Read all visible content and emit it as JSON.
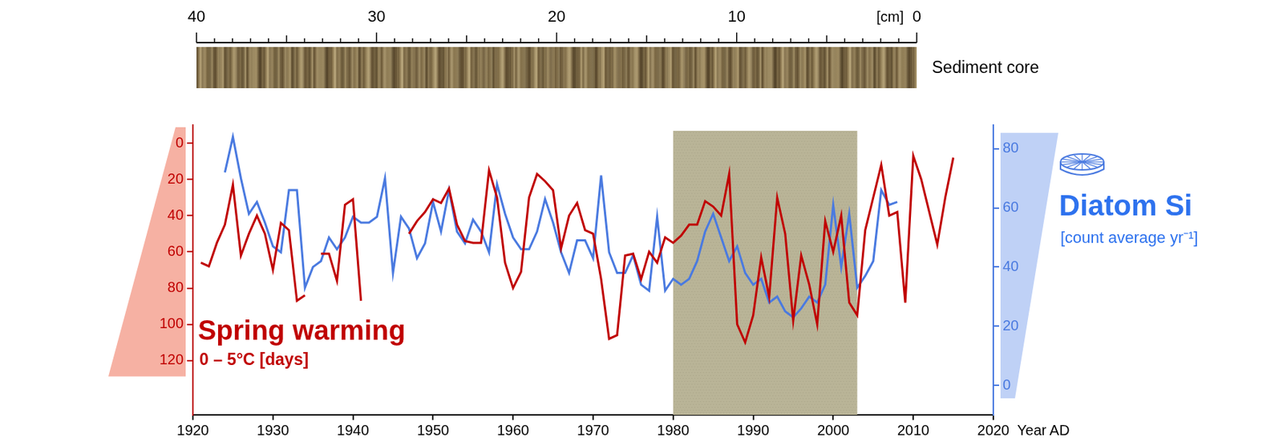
{
  "chart_data": {
    "type": "line",
    "x": [
      1921,
      1922,
      1923,
      1924,
      1925,
      1926,
      1927,
      1928,
      1929,
      1930,
      1931,
      1932,
      1933,
      1934,
      1935,
      1936,
      1937,
      1938,
      1939,
      1940,
      1941,
      1942,
      1943,
      1944,
      1945,
      1946,
      1947,
      1948,
      1949,
      1950,
      1951,
      1952,
      1953,
      1954,
      1955,
      1956,
      1957,
      1958,
      1959,
      1960,
      1961,
      1962,
      1963,
      1964,
      1965,
      1966,
      1967,
      1968,
      1969,
      1970,
      1971,
      1972,
      1973,
      1974,
      1975,
      1976,
      1977,
      1978,
      1979,
      1980,
      1981,
      1982,
      1983,
      1984,
      1985,
      1986,
      1987,
      1988,
      1989,
      1990,
      1991,
      1992,
      1993,
      1994,
      1995,
      1996,
      1997,
      1998,
      1999,
      2000,
      2001,
      2002,
      2003,
      2004,
      2005,
      2006,
      2007,
      2008,
      2009,
      2010,
      2011,
      2012,
      2013,
      2014,
      2015
    ],
    "series": [
      {
        "name": "Spring warming",
        "color": "#c00000",
        "axis": "y",
        "values": [
          66,
          68,
          55,
          45,
          23,
          62,
          50,
          40,
          50,
          70,
          44,
          48,
          87,
          84,
          null,
          61,
          61,
          76,
          34,
          31,
          87,
          null,
          null,
          null,
          null,
          null,
          50,
          43,
          38,
          31,
          33,
          25,
          45,
          54,
          55,
          55,
          15,
          30,
          66,
          80,
          71,
          30,
          17,
          21,
          26,
          58,
          40,
          33,
          48,
          50,
          75,
          108,
          106,
          62,
          61,
          75,
          60,
          66,
          52,
          55,
          51,
          45,
          45,
          32,
          35,
          40,
          17,
          100,
          110,
          95,
          63,
          85,
          30,
          50,
          98,
          62,
          78,
          100,
          43,
          60,
          40,
          88,
          95,
          48,
          30,
          12,
          40,
          38,
          88,
          7,
          20,
          38,
          56,
          30,
          8
        ]
      },
      {
        "name": "Diatom Si",
        "color": "#4a7ae0",
        "axis": "y2",
        "values": [
          null,
          null,
          null,
          72,
          84,
          70,
          58,
          62,
          55,
          47,
          45,
          66,
          66,
          33,
          40,
          42,
          50,
          46,
          50,
          57,
          55,
          55,
          57,
          70,
          38,
          57,
          53,
          43,
          48,
          62,
          52,
          66,
          52,
          48,
          56,
          52,
          45,
          68,
          58,
          50,
          46,
          46,
          52,
          63,
          55,
          45,
          38,
          49,
          49,
          43,
          71,
          45,
          38,
          38,
          44,
          34,
          32,
          57,
          32,
          36,
          34,
          36,
          42,
          52,
          58,
          50,
          42,
          47,
          38,
          34,
          36,
          28,
          30,
          25,
          23,
          26,
          30,
          28,
          34,
          61,
          40,
          58,
          33,
          37,
          42,
          66,
          61,
          62,
          null,
          null,
          null,
          null,
          null,
          null,
          null
        ]
      }
    ],
    "x_label": "Year AD",
    "y_label": "0 – 5°C [days]",
    "y2_label": "[count average yr⁻¹]",
    "xlim": [
      1920,
      2020
    ],
    "xticks": [
      1920,
      1930,
      1940,
      1950,
      1960,
      1970,
      1980,
      1990,
      2000,
      2010,
      2020
    ],
    "ylim": [
      150,
      -10
    ],
    "yticks": [
      0,
      20,
      40,
      60,
      80,
      100,
      120
    ],
    "y2lim": [
      -10,
      88
    ],
    "y2ticks": [
      0,
      20,
      40,
      60,
      80
    ],
    "shaded_period": [
      1980,
      2003
    ],
    "grid": false
  },
  "sediment_core": {
    "label": "Sediment core",
    "unit": "[cm]",
    "xlim": [
      40,
      0
    ],
    "xticks": [
      40,
      30,
      20,
      10,
      0
    ]
  }
}
